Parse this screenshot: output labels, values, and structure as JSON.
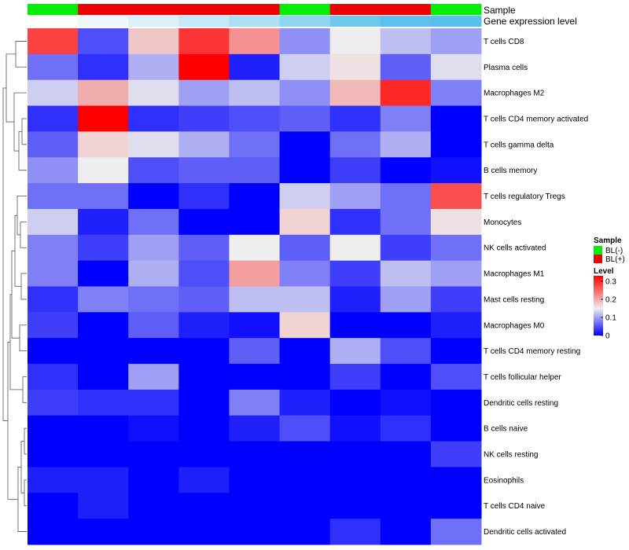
{
  "chart_data": {
    "type": "heatmap",
    "annotations": {
      "sample_label": "Sample",
      "gene_label": "Gene expression level",
      "sample_groups": [
        "BL(-)",
        "BL(+)",
        "BL(+)",
        "BL(+)",
        "BL(+)",
        "BL(-)",
        "BL(+)",
        "BL(+)",
        "BL(-)"
      ],
      "gene_levels": [
        0.0,
        0.05,
        0.12,
        0.2,
        0.3,
        0.42,
        0.58,
        0.72,
        1.0
      ]
    },
    "rows": [
      "T cells CD8",
      "Plasma cells",
      "Macrophages M2",
      "T cells CD4 memory activated",
      "T cells gamma delta",
      "B cells memory",
      "T cells regulatory  Tregs",
      "Monocytes",
      "NK cells activated",
      "Macrophages M1",
      "Mast cells resting",
      "Macrophages M0",
      "T cells CD4 memory resting",
      "T cells follicular helper",
      "Dendritic cells resting",
      "B cells naive",
      "NK cells resting",
      "Eosinophils",
      "T cells CD4 naive",
      "Dendritic cells activated"
    ],
    "values": [
      [
        0.28,
        0.05,
        0.18,
        0.29,
        0.22,
        0.09,
        0.15,
        0.12,
        0.1
      ],
      [
        0.07,
        0.03,
        0.11,
        0.33,
        0.02,
        0.13,
        0.16,
        0.06,
        0.14
      ],
      [
        0.13,
        0.2,
        0.14,
        0.1,
        0.12,
        0.09,
        0.19,
        0.3,
        0.08
      ],
      [
        0.03,
        0.33,
        0.03,
        0.04,
        0.05,
        0.06,
        0.03,
        0.08,
        0.0
      ],
      [
        0.06,
        0.17,
        0.14,
        0.11,
        0.07,
        0.0,
        0.07,
        0.11,
        0.0
      ],
      [
        0.09,
        0.15,
        0.05,
        0.06,
        0.06,
        0.0,
        0.04,
        0.0,
        0.01
      ],
      [
        0.07,
        0.07,
        0.0,
        0.03,
        0.0,
        0.13,
        0.1,
        0.07,
        0.27
      ],
      [
        0.13,
        0.02,
        0.07,
        0.0,
        0.0,
        0.17,
        0.03,
        0.07,
        0.16
      ],
      [
        0.08,
        0.04,
        0.1,
        0.06,
        0.15,
        0.06,
        0.15,
        0.04,
        0.07
      ],
      [
        0.08,
        0.0,
        0.11,
        0.05,
        0.21,
        0.08,
        0.04,
        0.12,
        0.1
      ],
      [
        0.03,
        0.08,
        0.07,
        0.06,
        0.12,
        0.12,
        0.02,
        0.1,
        0.04
      ],
      [
        0.04,
        0.0,
        0.06,
        0.02,
        0.01,
        0.17,
        0.0,
        0.0,
        0.02
      ],
      [
        0.0,
        0.0,
        0.0,
        0.0,
        0.06,
        0.0,
        0.11,
        0.05,
        0.0
      ],
      [
        0.03,
        0.0,
        0.1,
        0.0,
        0.0,
        0.0,
        0.04,
        0.0,
        0.05
      ],
      [
        0.04,
        0.03,
        0.03,
        0.0,
        0.08,
        0.02,
        0.0,
        0.01,
        0.0
      ],
      [
        0.0,
        0.0,
        0.01,
        0.0,
        0.02,
        0.05,
        0.01,
        0.03,
        0.0
      ],
      [
        0.0,
        0.0,
        0.0,
        0.0,
        0.0,
        0.0,
        0.0,
        0.0,
        0.04
      ],
      [
        0.02,
        0.02,
        0.0,
        0.02,
        0.0,
        0.0,
        0.0,
        0.0,
        0.0
      ],
      [
        0.0,
        0.02,
        0.0,
        0.0,
        0.0,
        0.0,
        0.0,
        0.0,
        0.0
      ],
      [
        0.0,
        0.0,
        0.0,
        0.0,
        0.0,
        0.0,
        0.03,
        0.0,
        0.07
      ]
    ],
    "color_scale": {
      "low": "#0000ff",
      "mid": "#eeeeee",
      "high": "#ff0000",
      "mid_value": 0.15,
      "range": [
        0,
        0.33
      ]
    },
    "legend": {
      "sample_title": "Sample",
      "sample_entries": [
        {
          "label": "BL(-)",
          "color": "#00ee00"
        },
        {
          "label": "BL(+)",
          "color": "#ee0000"
        }
      ],
      "level_title": "Level",
      "level_ticks": [
        "0.3",
        "0.2",
        "0.1",
        "0"
      ],
      "level_tick_values": [
        0.3,
        0.2,
        0.1,
        0
      ]
    },
    "group_colors": {
      "BL(-)": "#00ee00",
      "BL(+)": "#ee0000"
    },
    "gene_level_colors": [
      "#ffffff",
      "#eef8fd",
      "#dcf1fb",
      "#c6e9f8",
      "#acdff5",
      "#8fd4f1",
      "#6dc8ee",
      "#5cc2ec",
      "#58c0eb"
    ],
    "dendrogram": "left",
    "legend_position": "right"
  }
}
